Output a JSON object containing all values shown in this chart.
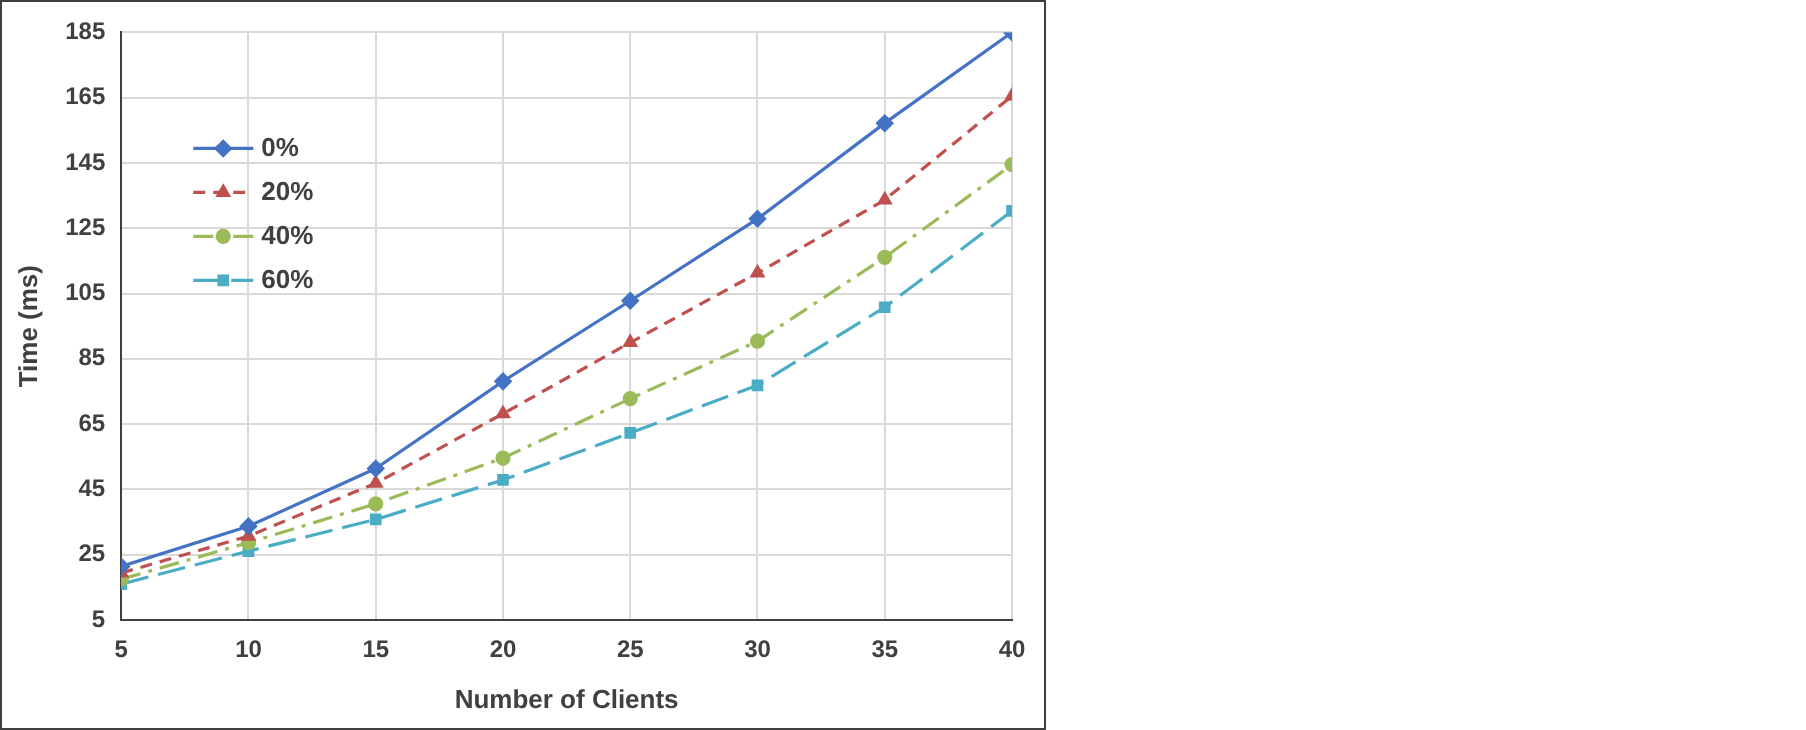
{
  "chart_data": {
    "type": "line",
    "xlabel": "Number of Clients",
    "ylabel": "Time (ms)",
    "x": [
      5,
      10,
      15,
      20,
      25,
      30,
      35,
      40
    ],
    "xlim": [
      5,
      40
    ],
    "xticks": [
      5,
      10,
      15,
      20,
      25,
      30,
      35,
      40
    ],
    "ylim": [
      5,
      185
    ],
    "yticks": [
      5,
      25,
      45,
      65,
      85,
      105,
      125,
      145,
      165,
      185
    ],
    "grid": true,
    "legend": "top left",
    "series": [
      {
        "name": "0%",
        "color": "#4472c4",
        "marker": "diamond",
        "line_style": "solid",
        "values": [
          21.4,
          33.7,
          51.4,
          78.1,
          102.8,
          127.9,
          157.2,
          185
        ]
      },
      {
        "name": "20%",
        "color": "#c0504d",
        "marker": "triangle",
        "line_style": "dashed",
        "values": [
          19.4,
          30.7,
          46.9,
          68.2,
          90,
          111.3,
          133.7,
          165.5
        ]
      },
      {
        "name": "40%",
        "color": "#9bbb59",
        "marker": "circle",
        "line_style": "dashed",
        "values": [
          17.5,
          28.7,
          40.6,
          54.6,
          72.8,
          90.4,
          116.1,
          144.5
        ]
      },
      {
        "name": "60%",
        "color": "#4bacc6",
        "marker": "square",
        "line_style": "dashed",
        "values": [
          16,
          26.1,
          35.8,
          47.9,
          62.3,
          76.9,
          100.8,
          130.3
        ]
      }
    ]
  }
}
